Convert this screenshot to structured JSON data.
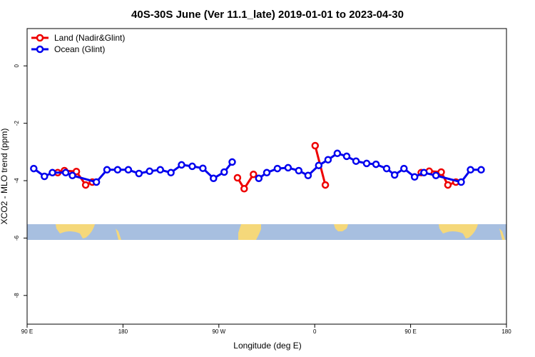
{
  "chart_data": {
    "type": "line",
    "title": "40S-30S June (Ver 11.1_late)   2019-01-01 to 2023-04-30",
    "xlabel": "Longitude (deg E)",
    "ylabel": "XCO2 - MLO trend (ppm)",
    "xlim": [
      90,
      450
    ],
    "ylim": [
      -9.0,
      1.3
    ],
    "x_ticks": [
      {
        "value": 90,
        "label": "90 E"
      },
      {
        "value": 162,
        "label": "180"
      },
      {
        "value": 234,
        "label": "90 W"
      },
      {
        "value": 306,
        "label": "0"
      },
      {
        "value": 378,
        "label": "90 E"
      },
      {
        "value": 450,
        "label": "180"
      }
    ],
    "y_ticks": [
      {
        "value": 0,
        "label": "0"
      },
      {
        "value": -2,
        "label": "-2"
      },
      {
        "value": -4,
        "label": "-4"
      },
      {
        "value": -6,
        "label": "-6"
      },
      {
        "value": -8,
        "label": "-8"
      }
    ],
    "legend": {
      "position": "top-left",
      "entries": [
        {
          "label": "Land (Nadir&Glint)",
          "color": "#ee0000"
        },
        {
          "label": "Ocean (Glint)",
          "color": "#0000ee"
        }
      ]
    },
    "series": [
      {
        "name": "Land (Nadir&Glint)",
        "color": "#ee0000",
        "segments": [
          [
            [
              113,
              -3.72
            ],
            [
              118,
              -3.65
            ],
            [
              127,
              -3.68
            ],
            [
              134,
              -4.15
            ],
            [
              139,
              -4.05
            ]
          ],
          [
            [
              248,
              -3.9
            ],
            [
              253,
              -4.28
            ],
            [
              260,
              -3.78
            ]
          ],
          [
            [
              306.3,
              -2.78
            ],
            [
              314,
              -4.15
            ]
          ],
          [
            [
              386,
              -3.72
            ],
            [
              392,
              -3.67
            ],
            [
              401,
              -3.7
            ],
            [
              406,
              -4.15
            ],
            [
              412,
              -4.05
            ]
          ]
        ]
      },
      {
        "name": "Ocean (Glint)",
        "color": "#0000ee",
        "segments": [
          [
            [
              95,
              -3.58
            ],
            [
              103,
              -3.85
            ],
            [
              109,
              -3.72
            ],
            [
              119,
              -3.72
            ],
            [
              124,
              -3.82
            ],
            [
              142,
              -4.05
            ],
            [
              150,
              -3.62
            ],
            [
              158,
              -3.62
            ],
            [
              166,
              -3.62
            ],
            [
              174,
              -3.75
            ],
            [
              182,
              -3.67
            ],
            [
              190,
              -3.62
            ],
            [
              198,
              -3.72
            ],
            [
              206,
              -3.45
            ],
            [
              214,
              -3.5
            ],
            [
              222,
              -3.57
            ],
            [
              230,
              -3.92
            ],
            [
              238,
              -3.7
            ],
            [
              244,
              -3.35
            ]
          ],
          [
            [
              264,
              -3.92
            ],
            [
              270,
              -3.72
            ],
            [
              278,
              -3.58
            ],
            [
              286,
              -3.55
            ],
            [
              294,
              -3.65
            ],
            [
              301,
              -3.82
            ],
            [
              309,
              -3.47
            ],
            [
              316,
              -3.27
            ],
            [
              323,
              -3.05
            ],
            [
              330,
              -3.15
            ],
            [
              337,
              -3.32
            ],
            [
              345,
              -3.4
            ],
            [
              352,
              -3.43
            ],
            [
              360,
              -3.58
            ],
            [
              366,
              -3.8
            ],
            [
              373,
              -3.58
            ],
            [
              381,
              -3.87
            ],
            [
              388,
              -3.72
            ],
            [
              397,
              -3.82
            ],
            [
              416,
              -4.05
            ],
            [
              423,
              -3.62
            ],
            [
              431,
              -3.62
            ]
          ]
        ]
      }
    ],
    "map_strip": {
      "y_range": [
        -5.4,
        -5.95
      ],
      "ocean_color": "#a7bfe0",
      "land_color": "#f5d87a"
    }
  }
}
